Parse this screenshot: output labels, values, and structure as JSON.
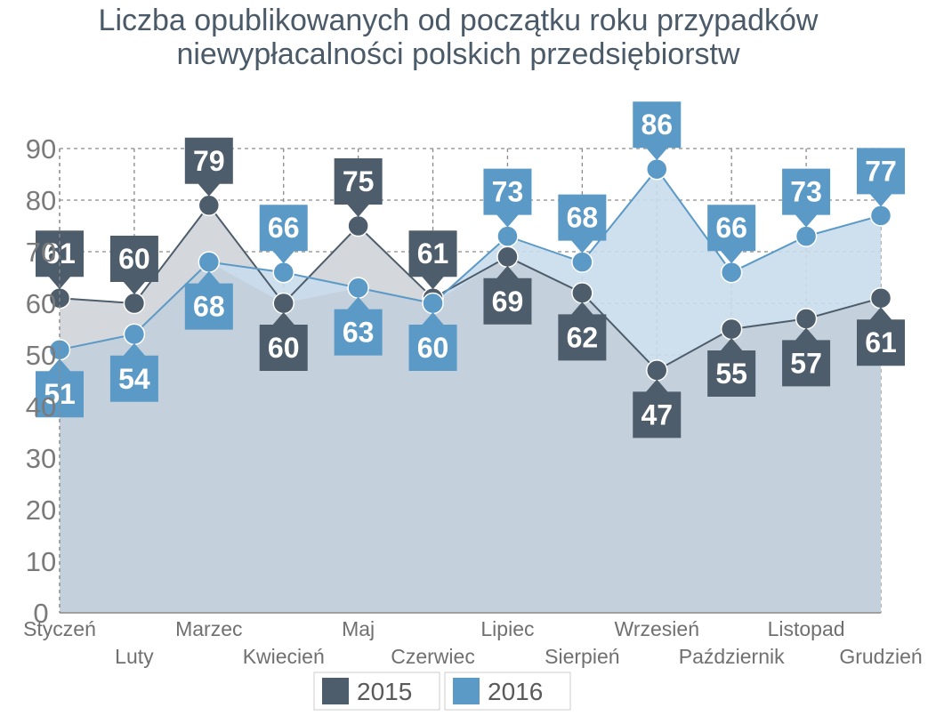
{
  "title": {
    "line1": "Liczba opublikowanych od początku roku przypadków",
    "line2": "niewypłacalności polskich przedsiębiorstw"
  },
  "colors": {
    "series_2015": "#4e5d6b",
    "series_2016": "#5b9ac6",
    "fill_2015": "#d4d7db",
    "fill_2016": "#c9dcec",
    "overlap": "#c4d0dc",
    "grid": "#8a8a8a"
  },
  "chart_data": {
    "type": "area",
    "title": "Liczba opublikowanych od początku roku przypadków niewypłacalności polskich przedsiębiorstw",
    "xlabel": "",
    "ylabel": "",
    "ylim": [
      0,
      90
    ],
    "yticks": [
      0,
      10,
      20,
      30,
      40,
      50,
      60,
      70,
      80,
      90
    ],
    "grid": true,
    "legend_position": "bottom",
    "categories": [
      "Styczeń",
      "Luty",
      "Marzec",
      "Kwiecień",
      "Maj",
      "Czerwiec",
      "Lipiec",
      "Sierpień",
      "Wrzesień",
      "Październik",
      "Listopad",
      "Grudzień"
    ],
    "series": [
      {
        "name": "2015",
        "values": [
          61,
          60,
          79,
          60,
          75,
          61,
          69,
          62,
          47,
          55,
          57,
          61
        ]
      },
      {
        "name": "2016",
        "values": [
          51,
          54,
          68,
          66,
          63,
          60,
          73,
          68,
          86,
          66,
          73,
          77
        ]
      }
    ]
  }
}
